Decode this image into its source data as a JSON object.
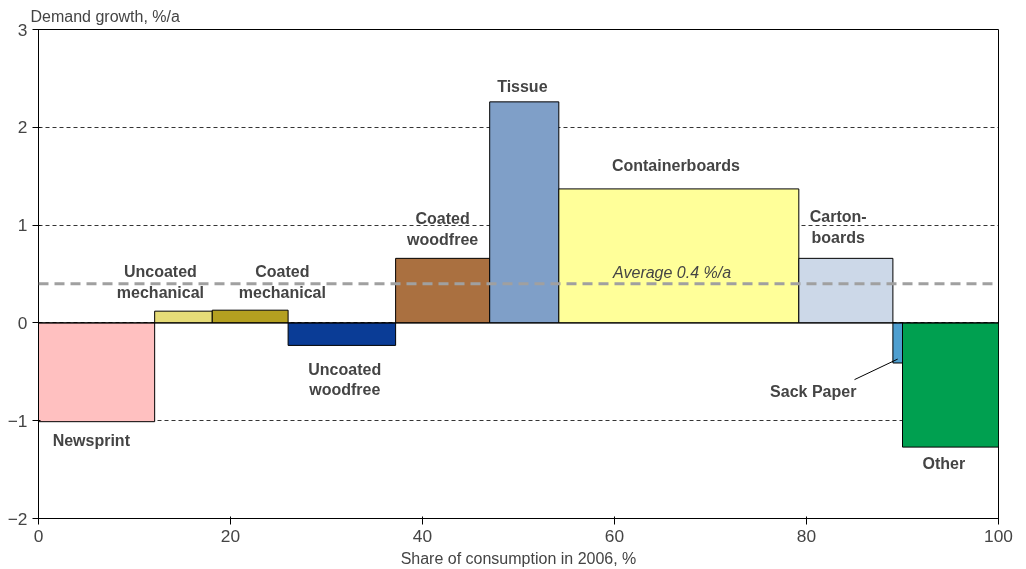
{
  "chart_data": {
    "type": "histogram",
    "xlabel": "Share of consumption in 2006, %",
    "ylabel": "Demand growth, %/a",
    "bins": [
      0,
      12.1,
      18.1,
      26.0,
      37.2,
      47.0,
      54.2,
      79.2,
      89.0,
      90.0,
      100
    ],
    "values": [
      -1.01,
      0.12,
      0.13,
      -0.23,
      0.66,
      2.26,
      1.37,
      0.66,
      -0.41,
      -1.27
    ],
    "colors": [
      "#ffc0c0",
      "#e6dc78",
      "#b4a020",
      "#0a3c96",
      "#aa7040",
      "#7f9fc8",
      "#ffff99",
      "#ccd8e8",
      "#4f9fd0",
      "#00a050"
    ],
    "xlim": [
      0,
      100
    ],
    "xticks": [
      0,
      20,
      40,
      60,
      80,
      100
    ],
    "ylim": [
      -2,
      3
    ],
    "yticks": [
      -2,
      -1,
      0,
      1,
      2,
      3
    ],
    "grid": "y",
    "ref_lines": [
      {
        "axis": "y",
        "value": 0.4,
        "label": "Average 0.4 %/a",
        "color": "#a0a0a0",
        "line_style": "dashed"
      }
    ],
    "annotations": [
      "Newsprint",
      "Uncoated\nmechanical",
      "Coated\nmechanical",
      "Uncoated\nwoodfree",
      "Coated\nwoodfree",
      "Tissue",
      "Containerboards",
      "Carton-\nboards",
      {
        "text": "Sack Paper",
        "x": 89.5,
        "y": -0.37
      },
      "Other"
    ]
  }
}
